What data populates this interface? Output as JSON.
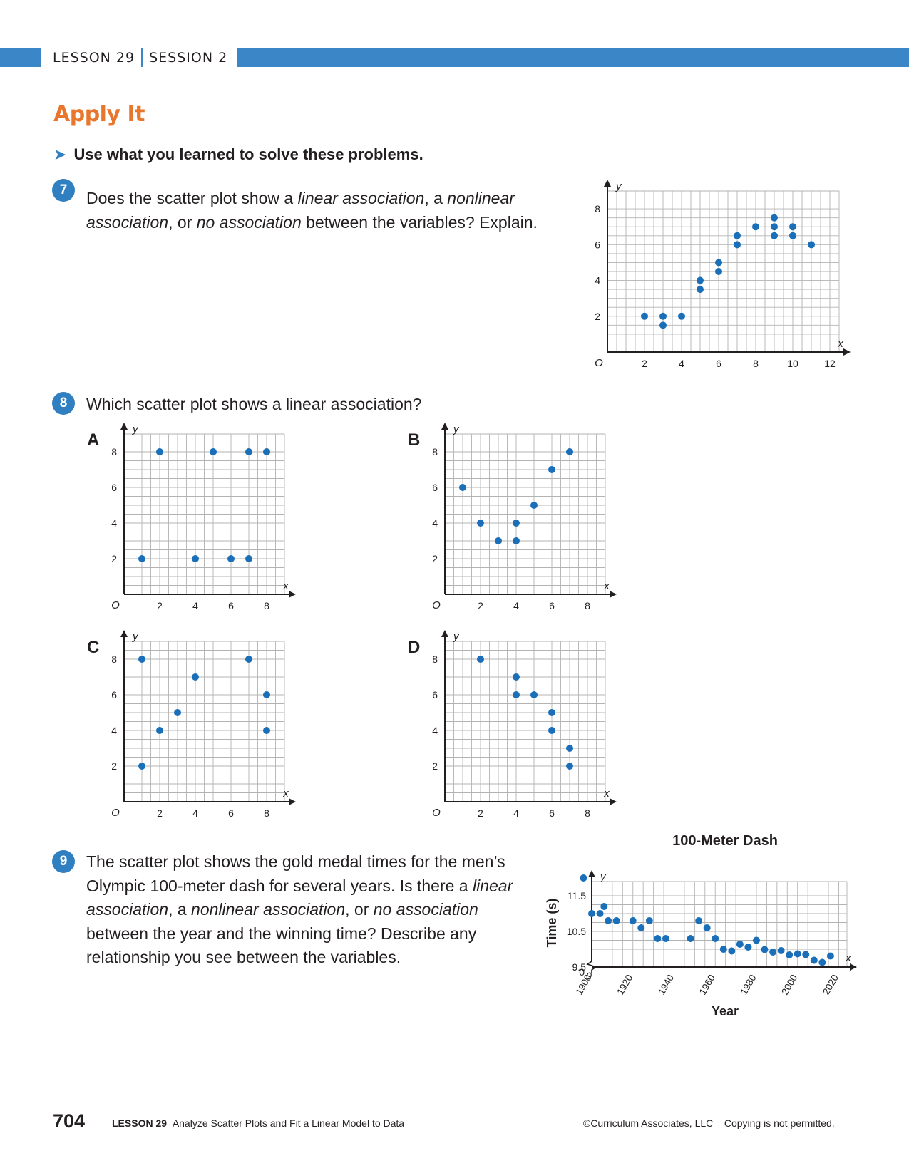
{
  "header": {
    "lesson": "LESSON 29",
    "session": "SESSION 2"
  },
  "section_title": "Apply It",
  "instruction": "Use what you learned to solve these problems.",
  "q7": {
    "number": "7",
    "text_html": "Does the scatter plot show a <i>linear association</i>, a <i>nonlinear association</i>, or <i>no association</i> between the variables? Explain."
  },
  "q8": {
    "number": "8",
    "text": "Which scatter plot shows a linear association?",
    "option_labels": [
      "A",
      "B",
      "C",
      "D"
    ]
  },
  "q9": {
    "number": "9",
    "text_html": "The scatter plot shows the gold medal times for the men’s Olympic 100-meter dash for several years. Is there a <i>linear association</i>, a <i>nonlinear association</i>, or <i>no association</i> between the year and the winning time? Describe any relationship you see between the variables."
  },
  "footer": {
    "page_number": "704",
    "lesson": "LESSON 29",
    "lesson_title": "Analyze Scatter Plots and Fit a Linear Model to Data",
    "copyright": "©Curriculum Associates, LLC",
    "notice": "Copying is not permitted."
  },
  "colors": {
    "accent_blue": "#2f7fc1",
    "band_blue": "#3a86c6",
    "title_orange": "#e8762c",
    "point_blue": "#1a6fb8",
    "grid": "#b3b3b3"
  },
  "icons": {
    "instruction_arrow": "right-arrowhead-icon"
  },
  "chart_data": [
    {
      "id": "q7",
      "type": "scatter",
      "title": "",
      "xlabel": "x",
      "ylabel": "y",
      "origin_label": "O",
      "xlim": [
        0,
        12.5
      ],
      "ylim": [
        0,
        9
      ],
      "xticks": [
        2,
        4,
        6,
        8,
        10,
        12
      ],
      "yticks": [
        2,
        4,
        6,
        8
      ],
      "grid": true,
      "points": [
        [
          2,
          2
        ],
        [
          3,
          2
        ],
        [
          3,
          1.5
        ],
        [
          4,
          2
        ],
        [
          5,
          4
        ],
        [
          5,
          3.5
        ],
        [
          6,
          5
        ],
        [
          6,
          4.5
        ],
        [
          7,
          6.5
        ],
        [
          7,
          6
        ],
        [
          8,
          7
        ],
        [
          9,
          7.5
        ],
        [
          9,
          7
        ],
        [
          9,
          6.5
        ],
        [
          10,
          7
        ],
        [
          10,
          6.5
        ],
        [
          11,
          6
        ]
      ]
    },
    {
      "id": "A",
      "type": "scatter",
      "title": "",
      "xlabel": "x",
      "ylabel": "y",
      "origin_label": "O",
      "xlim": [
        0,
        9
      ],
      "ylim": [
        0,
        9
      ],
      "xticks": [
        2,
        4,
        6,
        8
      ],
      "yticks": [
        2,
        4,
        6,
        8
      ],
      "grid": true,
      "points": [
        [
          1,
          2
        ],
        [
          2,
          8
        ],
        [
          4,
          2
        ],
        [
          5,
          8
        ],
        [
          6,
          2
        ],
        [
          7,
          8
        ],
        [
          7,
          2
        ],
        [
          8,
          8
        ]
      ]
    },
    {
      "id": "B",
      "type": "scatter",
      "title": "",
      "xlabel": "x",
      "ylabel": "y",
      "origin_label": "O",
      "xlim": [
        0,
        9
      ],
      "ylim": [
        0,
        9
      ],
      "xticks": [
        2,
        4,
        6,
        8
      ],
      "yticks": [
        2,
        4,
        6,
        8
      ],
      "grid": true,
      "points": [
        [
          1,
          6
        ],
        [
          2,
          4
        ],
        [
          3,
          3
        ],
        [
          4,
          4
        ],
        [
          4,
          3
        ],
        [
          5,
          5
        ],
        [
          6,
          7
        ],
        [
          7,
          8
        ]
      ]
    },
    {
      "id": "C",
      "type": "scatter",
      "title": "",
      "xlabel": "x",
      "ylabel": "y",
      "origin_label": "O",
      "xlim": [
        0,
        9
      ],
      "ylim": [
        0,
        9
      ],
      "xticks": [
        2,
        4,
        6,
        8
      ],
      "yticks": [
        2,
        4,
        6,
        8
      ],
      "grid": true,
      "points": [
        [
          1,
          8
        ],
        [
          1,
          2
        ],
        [
          2,
          4
        ],
        [
          3,
          5
        ],
        [
          4,
          7
        ],
        [
          7,
          8
        ],
        [
          8,
          6
        ],
        [
          8,
          4
        ]
      ]
    },
    {
      "id": "D",
      "type": "scatter",
      "title": "",
      "xlabel": "x",
      "ylabel": "y",
      "origin_label": "O",
      "xlim": [
        0,
        9
      ],
      "ylim": [
        0,
        9
      ],
      "xticks": [
        2,
        4,
        6,
        8
      ],
      "yticks": [
        2,
        4,
        6,
        8
      ],
      "grid": true,
      "points": [
        [
          2,
          8
        ],
        [
          4,
          7
        ],
        [
          4,
          6
        ],
        [
          5,
          6
        ],
        [
          6,
          5
        ],
        [
          6,
          4
        ],
        [
          7,
          3
        ],
        [
          7,
          2
        ]
      ]
    },
    {
      "id": "q9",
      "type": "scatter",
      "title": "100-Meter Dash",
      "xlabel": "Year",
      "ylabel": "Time (s)",
      "axis_var_x": "x",
      "axis_var_y": "y",
      "xlim": [
        1900,
        2024
      ],
      "ylim": [
        9.5,
        11.9
      ],
      "xticks": [
        1900,
        1920,
        1940,
        1960,
        1980,
        2000,
        2020
      ],
      "yticks": [
        9.5,
        10.5,
        11.5
      ],
      "axis_break_labels": [
        "0",
        "0"
      ],
      "grid": true,
      "points": [
        [
          1896,
          12.0
        ],
        [
          1900,
          11.0
        ],
        [
          1904,
          11.0
        ],
        [
          1906,
          11.2
        ],
        [
          1908,
          10.8
        ],
        [
          1912,
          10.8
        ],
        [
          1920,
          10.8
        ],
        [
          1924,
          10.6
        ],
        [
          1928,
          10.8
        ],
        [
          1932,
          10.3
        ],
        [
          1936,
          10.3
        ],
        [
          1948,
          10.3
        ],
        [
          1952,
          10.8
        ],
        [
          1956,
          10.6
        ],
        [
          1960,
          10.3
        ],
        [
          1964,
          10.0
        ],
        [
          1968,
          9.95
        ],
        [
          1972,
          10.14
        ],
        [
          1976,
          10.06
        ],
        [
          1980,
          10.25
        ],
        [
          1984,
          9.99
        ],
        [
          1988,
          9.92
        ],
        [
          1992,
          9.96
        ],
        [
          1996,
          9.84
        ],
        [
          2000,
          9.87
        ],
        [
          2004,
          9.85
        ],
        [
          2008,
          9.69
        ],
        [
          2012,
          9.63
        ],
        [
          2016,
          9.81
        ]
      ]
    }
  ]
}
